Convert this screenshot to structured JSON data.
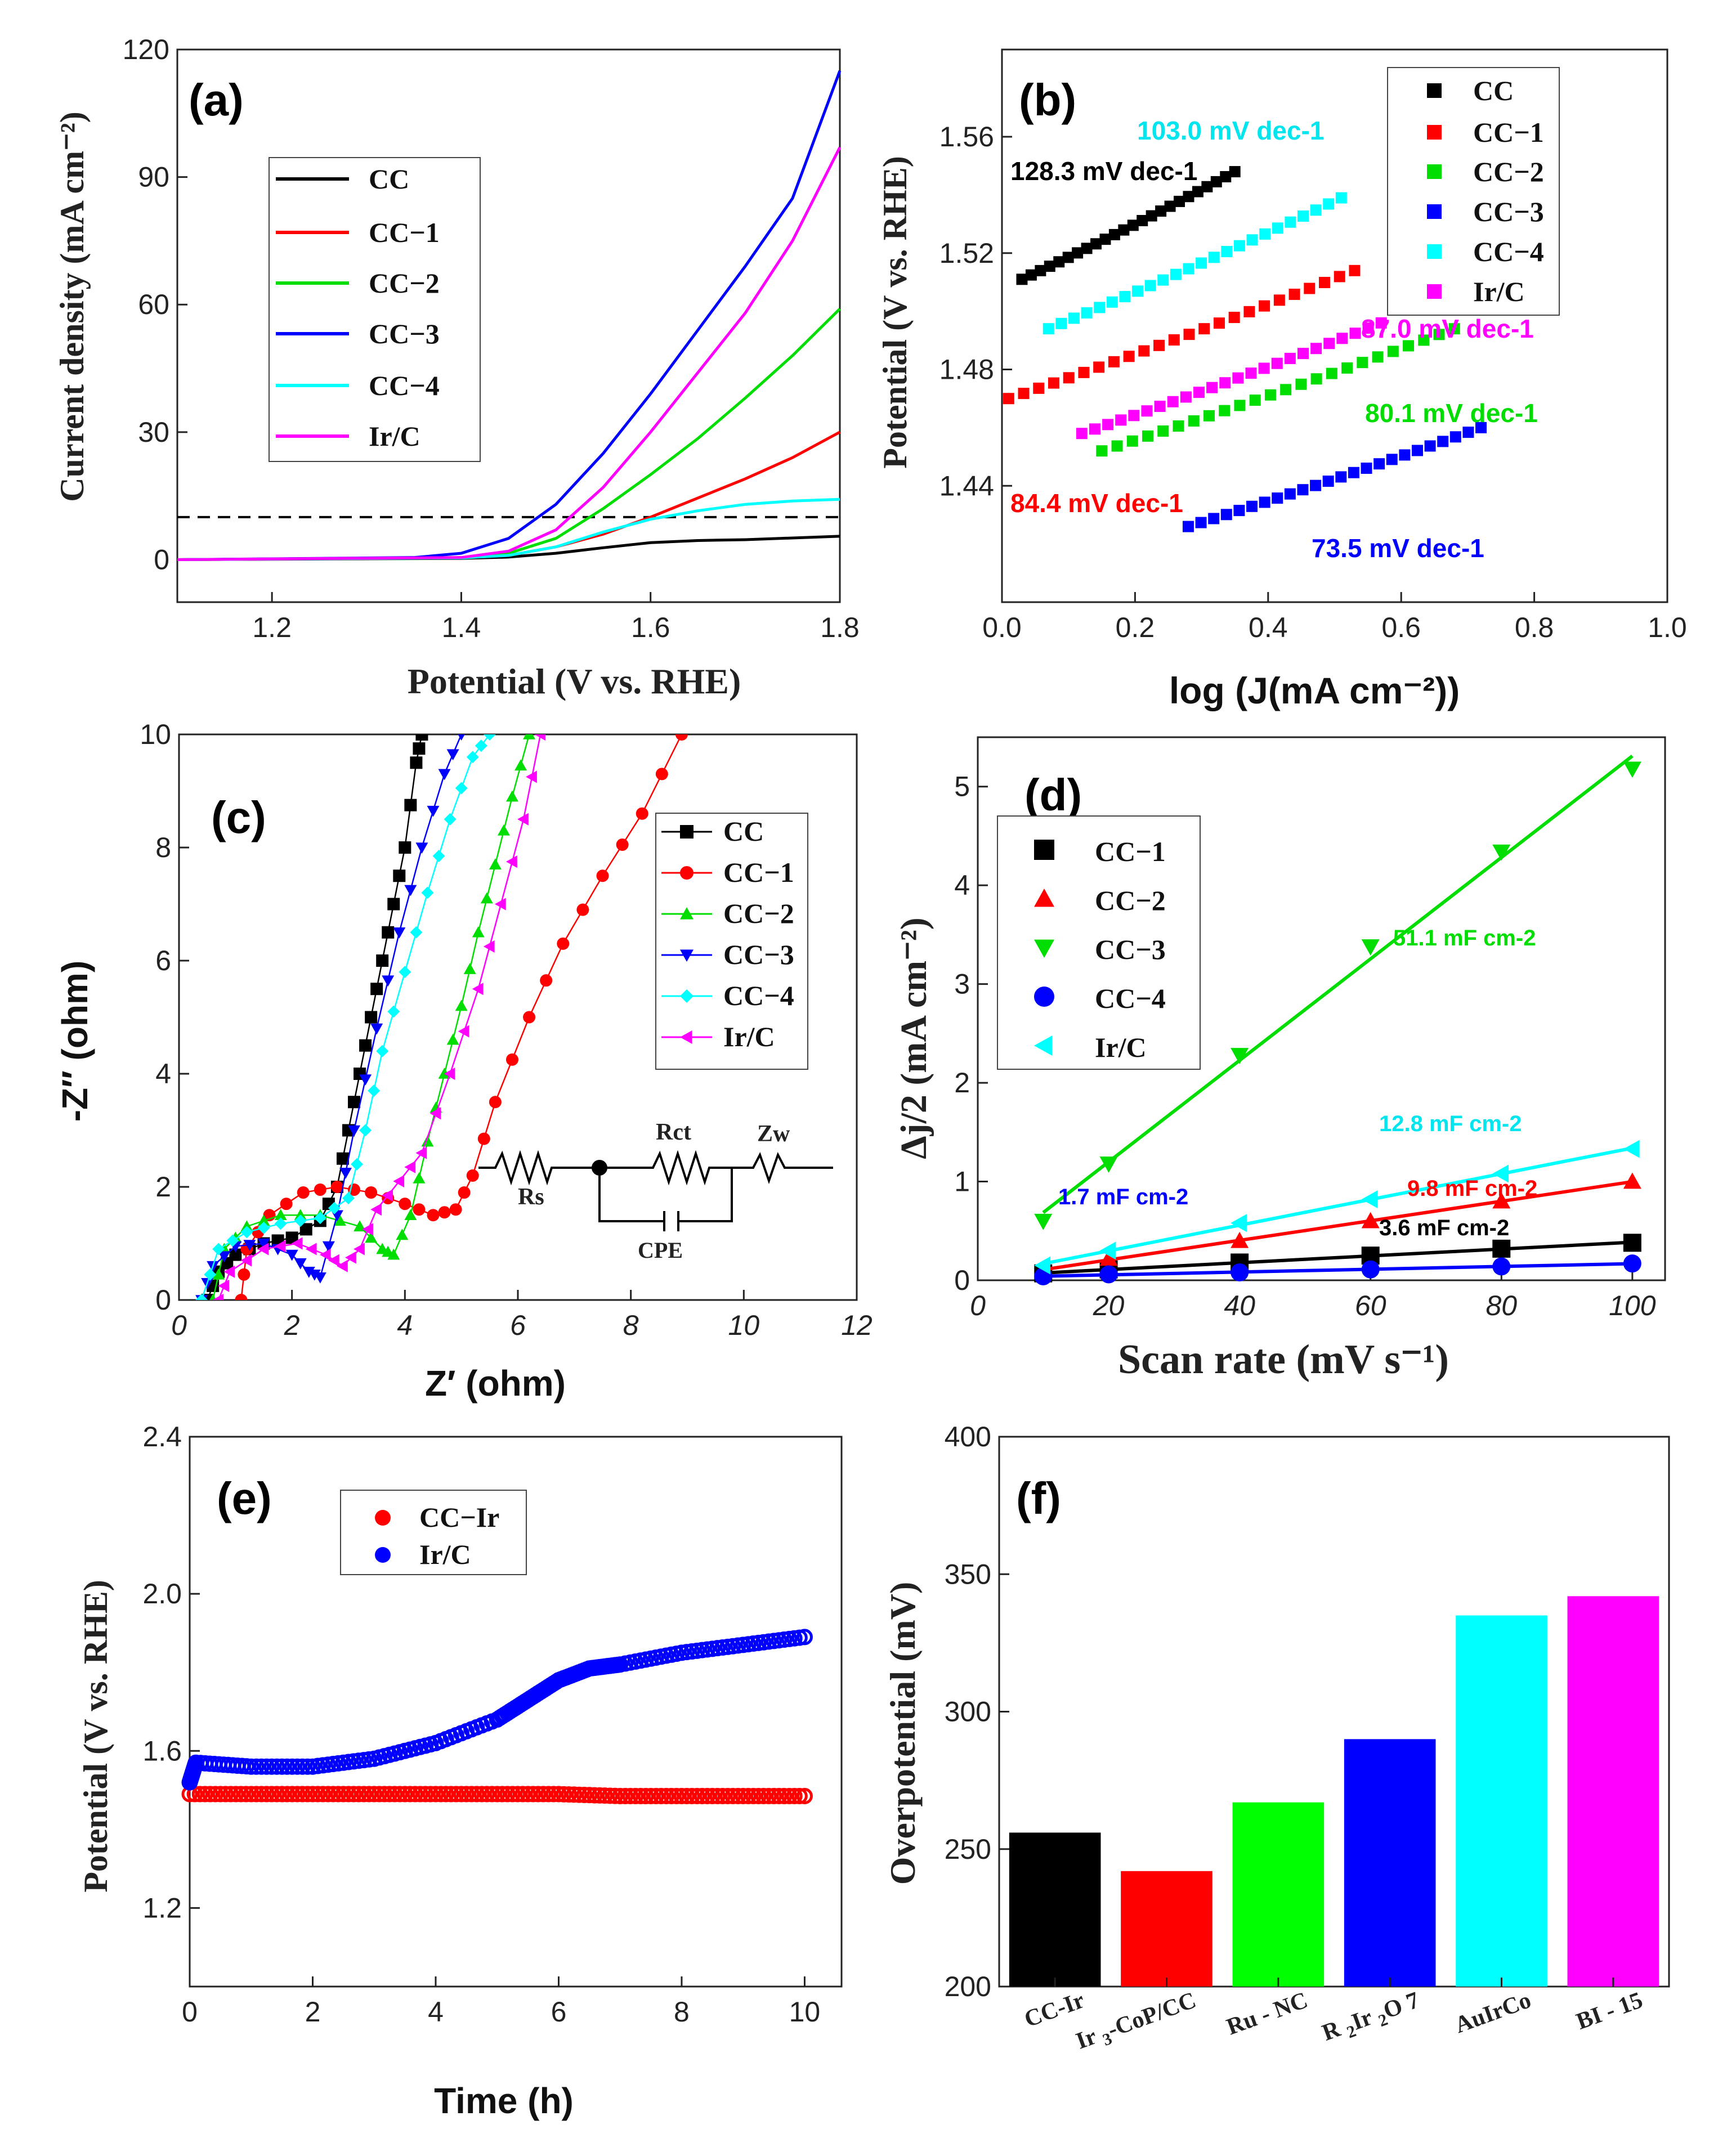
{
  "chart_data": [
    {
      "panel": "(a)",
      "type": "line",
      "xlabel": "Potential (V vs. RHE)",
      "ylabel": "Current density (mA cm⁻²)",
      "xlim": [
        1.1,
        1.8
      ],
      "ylim": [
        -10,
        120
      ],
      "xticks": [
        1.2,
        1.4,
        1.6,
        1.8
      ],
      "xtick_labels": [
        "1.2",
        "1.4",
        "1.6",
        "1.8"
      ],
      "yticks": [
        0,
        30,
        60,
        90,
        120
      ],
      "ytick_labels": [
        "0",
        "30",
        "60",
        "90",
        "120"
      ],
      "reference_line": 10,
      "series": [
        {
          "name": "CC",
          "color": "#000000",
          "x": [
            1.1,
            1.4,
            1.45,
            1.5,
            1.55,
            1.6,
            1.65,
            1.7,
            1.8
          ],
          "y": [
            0,
            0.3,
            0.6,
            1.5,
            2.8,
            4,
            4.5,
            4.7,
            5.5
          ]
        },
        {
          "name": "CC−1",
          "color": "#ff0000",
          "x": [
            1.1,
            1.4,
            1.45,
            1.5,
            1.55,
            1.6,
            1.65,
            1.7,
            1.75,
            1.8
          ],
          "y": [
            0,
            0.4,
            1,
            3,
            6,
            10,
            14.5,
            19,
            24,
            30
          ]
        },
        {
          "name": "CC−2",
          "color": "#00dd00",
          "x": [
            1.1,
            1.4,
            1.45,
            1.5,
            1.55,
            1.6,
            1.65,
            1.7,
            1.75,
            1.8
          ],
          "y": [
            0,
            0.5,
            1.5,
            5,
            12,
            20,
            28.5,
            38,
            48,
            59
          ]
        },
        {
          "name": "CC−3",
          "color": "#0000ff",
          "x": [
            1.1,
            1.35,
            1.4,
            1.45,
            1.5,
            1.55,
            1.6,
            1.65,
            1.7,
            1.75,
            1.8
          ],
          "y": [
            0,
            0.5,
            1.5,
            5,
            13,
            25,
            39,
            54,
            69,
            85,
            115
          ]
        },
        {
          "name": "CC−4",
          "color": "#00ffff",
          "x": [
            1.1,
            1.4,
            1.45,
            1.5,
            1.55,
            1.6,
            1.65,
            1.7,
            1.75,
            1.8
          ],
          "y": [
            0,
            0.4,
            1,
            3,
            6.5,
            9.5,
            11.5,
            13,
            13.8,
            14.2
          ]
        },
        {
          "name": "Ir/C",
          "color": "#ff00ff",
          "x": [
            1.1,
            1.4,
            1.45,
            1.5,
            1.55,
            1.6,
            1.65,
            1.7,
            1.75,
            1.8
          ],
          "y": [
            0,
            0.5,
            2,
            7,
            17,
            30,
            44,
            58,
            75,
            97
          ]
        }
      ]
    },
    {
      "panel": "(b)",
      "type": "scatter",
      "xlabel": "log (J(mA cm⁻²))",
      "ylabel": "Potential (V vs. RHE)",
      "xlim": [
        0.0,
        1.0
      ],
      "ylim": [
        1.4,
        1.59
      ],
      "xticks": [
        0.0,
        0.2,
        0.4,
        0.6,
        0.8,
        1.0
      ],
      "xtick_labels": [
        "0.0",
        "0.2",
        "0.4",
        "0.6",
        "0.8",
        "1.0"
      ],
      "yticks": [
        1.44,
        1.48,
        1.52,
        1.56
      ],
      "ytick_labels": [
        "1.44",
        "1.48",
        "1.52",
        "1.56"
      ],
      "series": [
        {
          "name": "CC",
          "color": "#000000",
          "x_range": [
            0.03,
            0.35
          ],
          "y_range": [
            1.511,
            1.548
          ],
          "tafel": "128.3 mV dec-1"
        },
        {
          "name": "CC−1",
          "color": "#ff0000",
          "x_range": [
            0.01,
            0.53
          ],
          "y_range": [
            1.47,
            1.514
          ],
          "tafel": "84.4 mV dec-1"
        },
        {
          "name": "CC−2",
          "color": "#00dd00",
          "x_range": [
            0.15,
            0.68
          ],
          "y_range": [
            1.452,
            1.494
          ],
          "tafel": "80.1 mV dec-1"
        },
        {
          "name": "CC−3",
          "color": "#0000ff",
          "x_range": [
            0.28,
            0.72
          ],
          "y_range": [
            1.426,
            1.46
          ],
          "tafel": "73.5 mV dec-1"
        },
        {
          "name": "CC−4",
          "color": "#00ffff",
          "x_range": [
            0.07,
            0.51
          ],
          "y_range": [
            1.494,
            1.539
          ],
          "tafel": "103.0 mV dec-1"
        },
        {
          "name": "Ir/C",
          "color": "#ff00ff",
          "x_range": [
            0.12,
            0.57
          ],
          "y_range": [
            1.458,
            1.496
          ],
          "tafel": "87.0 mV dec-1"
        }
      ]
    },
    {
      "panel": "(c)",
      "type": "line",
      "xlabel": "Z′ (ohm)",
      "ylabel": "-Z″ (ohm)",
      "xlim": [
        0,
        12
      ],
      "ylim": [
        0,
        10
      ],
      "xticks": [
        0,
        2,
        4,
        6,
        8,
        10,
        12
      ],
      "xtick_labels": [
        "0",
        "2",
        "4",
        "6",
        "8",
        "10",
        "12"
      ],
      "yticks": [
        0,
        2,
        4,
        6,
        8,
        10
      ],
      "ytick_labels": [
        "0",
        "2",
        "4",
        "6",
        "8",
        "10"
      ],
      "circuit_labels": {
        "rs": "Rs",
        "rct": "Rct",
        "zw": "Zw",
        "cpe": "CPE"
      },
      "series": [
        {
          "name": "CC",
          "color": "#000000",
          "marker": "square",
          "x": [
            0.5,
            0.7,
            1.0,
            1.5,
            2.0,
            2.5,
            2.8,
            3.0,
            3.2,
            3.4,
            3.6,
            3.8,
            4.0,
            4.2,
            4.3
          ],
          "y": [
            0.0,
            0.5,
            0.8,
            1.0,
            1.1,
            1.4,
            2.0,
            3.0,
            4.0,
            5.0,
            6.0,
            7.0,
            8.0,
            9.5,
            10.0
          ]
        },
        {
          "name": "CC−1",
          "color": "#ff0000",
          "marker": "circle",
          "x": [
            1.1,
            1.2,
            1.6,
            2.2,
            2.8,
            3.4,
            4.0,
            4.5,
            4.9,
            5.2,
            5.6,
            6.2,
            6.8,
            7.5,
            8.2,
            8.9
          ],
          "y": [
            0.0,
            0.9,
            1.5,
            1.9,
            2.0,
            1.9,
            1.7,
            1.5,
            1.6,
            2.2,
            3.5,
            5.0,
            6.3,
            7.5,
            8.6,
            10.0
          ]
        },
        {
          "name": "CC−2",
          "color": "#00dd00",
          "marker": "triangle-up",
          "x": [
            0.6,
            0.8,
            1.2,
            1.8,
            2.5,
            3.2,
            3.6,
            3.8,
            4.1,
            4.4,
            4.7,
            5.0,
            5.3,
            5.6,
            5.9,
            6.2
          ],
          "y": [
            0.0,
            0.9,
            1.3,
            1.5,
            1.5,
            1.3,
            0.9,
            0.8,
            1.5,
            2.8,
            4.0,
            5.2,
            6.5,
            7.7,
            8.9,
            10.0
          ]
        },
        {
          "name": "CC−3",
          "color": "#0000ff",
          "marker": "triangle-down",
          "x": [
            0.4,
            0.6,
            1.0,
            1.5,
            2.0,
            2.3,
            2.5,
            2.8,
            3.1,
            3.5,
            3.9,
            4.3,
            4.7,
            5.0
          ],
          "y": [
            0.0,
            0.6,
            0.95,
            1.0,
            0.8,
            0.5,
            0.4,
            1.5,
            3.0,
            4.8,
            6.5,
            8.0,
            9.3,
            10.0
          ]
        },
        {
          "name": "CC−4",
          "color": "#00ffff",
          "marker": "diamond",
          "x": [
            0.4,
            0.7,
            1.2,
            1.8,
            2.5,
            3.0,
            3.3,
            3.6,
            4.0,
            4.4,
            4.8,
            5.2,
            5.5
          ],
          "y": [
            0.0,
            0.9,
            1.2,
            1.35,
            1.45,
            1.8,
            3.0,
            4.4,
            5.8,
            7.2,
            8.5,
            9.6,
            10.0
          ]
        },
        {
          "name": "Ir/C",
          "color": "#ff00ff",
          "marker": "triangle-left",
          "x": [
            0.7,
            0.9,
            1.5,
            2.1,
            2.6,
            2.9,
            3.2,
            3.5,
            3.9,
            4.3,
            4.8,
            5.3,
            5.7,
            6.1,
            6.4
          ],
          "y": [
            0.0,
            0.5,
            0.9,
            1.0,
            0.8,
            0.6,
            0.9,
            1.6,
            2.1,
            2.6,
            4.0,
            5.5,
            7.0,
            8.5,
            10.0
          ]
        }
      ]
    },
    {
      "panel": "(d)",
      "type": "scatter",
      "xlabel": "Scan rate (mV s⁻¹)",
      "ylabel": "Δj/2 (mA cm⁻²)",
      "xlim": [
        0,
        105
      ],
      "ylim": [
        0,
        5.5
      ],
      "xticks": [
        0,
        20,
        40,
        60,
        80,
        100
      ],
      "xtick_labels": [
        "0",
        "20",
        "40",
        "60",
        "80",
        "100"
      ],
      "yticks": [
        0,
        1,
        2,
        3,
        4,
        5
      ],
      "ytick_labels": [
        "0",
        "1",
        "2",
        "3",
        "4",
        "5"
      ],
      "x": [
        10,
        20,
        40,
        60,
        80,
        100
      ],
      "series": [
        {
          "name": "CC−1",
          "color": "#000000",
          "marker": "square",
          "values": [
            0.07,
            0.11,
            0.18,
            0.25,
            0.32,
            0.38
          ],
          "cdl": "3.6 mF cm-2"
        },
        {
          "name": "CC−2",
          "color": "#ff0000",
          "marker": "triangle-up",
          "values": [
            0.1,
            0.22,
            0.4,
            0.6,
            0.8,
            1.0
          ],
          "cdl": "9.8 mF cm-2"
        },
        {
          "name": "CC−3",
          "color": "#00dd00",
          "marker": "triangle-down",
          "values": [
            0.6,
            1.18,
            2.28,
            3.38,
            4.34,
            5.18
          ],
          "cdl": "51.1 mF cm-2"
        },
        {
          "name": "CC−4",
          "color": "#0000ff",
          "marker": "circle",
          "values": [
            0.04,
            0.06,
            0.08,
            0.11,
            0.14,
            0.17
          ],
          "cdl": "1.7 mF cm-2"
        },
        {
          "name": "Ir/C",
          "color": "#00ffff",
          "marker": "triangle-left",
          "values": [
            0.15,
            0.3,
            0.58,
            0.82,
            1.08,
            1.33
          ],
          "cdl": "12.8 mF cm-2"
        }
      ]
    },
    {
      "panel": "(e)",
      "type": "scatter",
      "xlabel": "Time (h)",
      "ylabel": "Potential (V vs. RHE)",
      "xlim": [
        0,
        10.6
      ],
      "ylim": [
        1.0,
        2.4
      ],
      "xticks": [
        0,
        2,
        4,
        6,
        8,
        10
      ],
      "xtick_labels": [
        "0",
        "2",
        "4",
        "6",
        "8",
        "10"
      ],
      "yticks": [
        1.2,
        1.6,
        2.0,
        2.4
      ],
      "ytick_labels": [
        "1.2",
        "1.6",
        "2.0",
        "2.4"
      ],
      "series": [
        {
          "name": "CC−Ir",
          "color": "#ff0000",
          "x": [
            0,
            1,
            2,
            3,
            4,
            5,
            6,
            7,
            8,
            9,
            10
          ],
          "y": [
            1.49,
            1.49,
            1.49,
            1.49,
            1.49,
            1.49,
            1.49,
            1.485,
            1.485,
            1.485,
            1.485
          ]
        },
        {
          "name": "Ir/C",
          "color": "#0000ff",
          "x": [
            0,
            0.1,
            1,
            2,
            3,
            4,
            5,
            5.5,
            6,
            6.5,
            7,
            8,
            9,
            10
          ],
          "y": [
            1.52,
            1.57,
            1.56,
            1.56,
            1.58,
            1.62,
            1.68,
            1.73,
            1.78,
            1.81,
            1.82,
            1.85,
            1.87,
            1.89
          ]
        }
      ]
    },
    {
      "panel": "(f)",
      "type": "bar",
      "xlabel": "",
      "ylabel": "Overpotential (mV)",
      "ylim": [
        200,
        400
      ],
      "yticks": [
        200,
        250,
        300,
        350,
        400
      ],
      "ytick_labels": [
        "200",
        "250",
        "300",
        "350",
        "400"
      ],
      "categories": [
        {
          "prefix": "CC-Ir",
          "sub1": "",
          "mid": "",
          "sub2": "",
          "rest": ""
        },
        {
          "prefix": "Ir ",
          "sub1": "3",
          "mid": "-CoP/CC",
          "sub2": "",
          "rest": ""
        },
        {
          "prefix": "Ru - NC",
          "sub1": "",
          "mid": "",
          "sub2": "",
          "rest": ""
        },
        {
          "prefix": "R ",
          "sub1": "2",
          "mid": "Ir ",
          "sub2": "2",
          "rest": "O 7"
        },
        {
          "prefix": "AuIrCo",
          "sub1": "",
          "mid": "",
          "sub2": "",
          "rest": ""
        },
        {
          "prefix": "BI - 15",
          "sub1": "",
          "mid": "",
          "sub2": "",
          "rest": ""
        }
      ],
      "values": [
        256,
        242,
        267,
        290,
        335,
        342
      ],
      "colors": [
        "#000000",
        "#ff0000",
        "#00ff00",
        "#0000ff",
        "#00ffff",
        "#ff00ff"
      ]
    }
  ]
}
